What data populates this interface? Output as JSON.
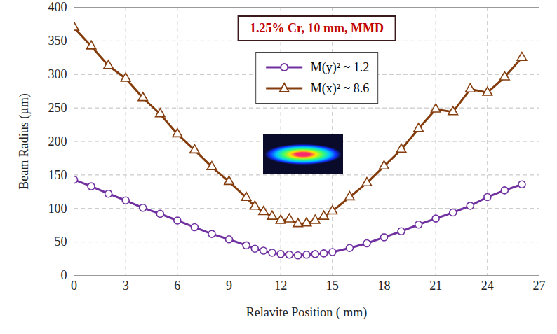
{
  "chart_data": {
    "type": "line",
    "title": "1.25% Cr, 10 mm, MMD",
    "x_label": "Relavite Position ( mm)",
    "y_label": "Beam Radius (µm)",
    "x": [
      0,
      1,
      2,
      3,
      4,
      5,
      6,
      7,
      8,
      9,
      10,
      10.5,
      11,
      11.5,
      12,
      12.5,
      13,
      13.5,
      14,
      14.5,
      15,
      16,
      17,
      18,
      19,
      20,
      21,
      22,
      23,
      24,
      25,
      26
    ],
    "series": [
      {
        "name": "M(y)² ~ 1.2",
        "color": "#7030a0",
        "marker": "circle",
        "values": [
          143,
          133,
          122,
          112,
          101,
          92,
          82,
          72,
          62,
          54,
          45,
          40,
          37,
          34,
          32,
          31,
          30,
          31,
          32,
          33,
          35,
          41,
          48,
          57,
          66,
          76,
          85,
          94,
          104,
          117,
          127,
          136
        ]
      },
      {
        "name": "M(x)² ~ 8.6",
        "color": "#843c0c",
        "marker": "triangle",
        "values": [
          370,
          342,
          313,
          294,
          265,
          241,
          211,
          187,
          162,
          140,
          116,
          103,
          95,
          88,
          82,
          84,
          77,
          78,
          82,
          88,
          96,
          117,
          138,
          163,
          188,
          219,
          248,
          244,
          278,
          273,
          296,
          325
        ]
      }
    ],
    "xlim": [
      0,
      27
    ],
    "xticks": [
      0,
      3,
      6,
      9,
      12,
      15,
      18,
      21,
      24,
      27
    ],
    "ylim": [
      0,
      400
    ],
    "yticks": [
      0,
      50,
      100,
      150,
      200,
      250,
      300,
      350,
      400
    ],
    "grid": true,
    "legend": "top"
  }
}
